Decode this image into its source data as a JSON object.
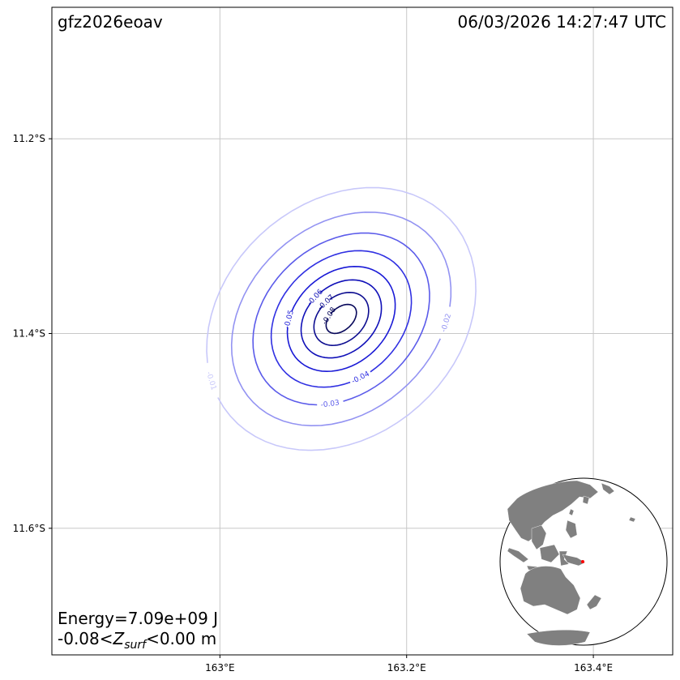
{
  "header": {
    "event_id": "gfz2026eoav",
    "timestamp": "06/03/2026 14:27:47 UTC"
  },
  "footer": {
    "energy": "Energy=7.09e+09 J",
    "zsurf_prefix": "-0.08<",
    "zsurf_symbol": "Z",
    "zsurf_subscript": "surf",
    "zsurf_suffix": "<0.00 m"
  },
  "map": {
    "lon_range": [
      162.82,
      163.485
    ],
    "lat_range": [
      -11.73,
      -11.065
    ],
    "lon_ticks": [
      {
        "value": 163.0,
        "label": "163°E"
      },
      {
        "value": 163.2,
        "label": "163.2°E"
      },
      {
        "value": 163.4,
        "label": "163.4°E"
      }
    ],
    "lat_ticks": [
      {
        "value": -11.2,
        "label": "11.2°S"
      },
      {
        "value": -11.4,
        "label": "11.4°S"
      },
      {
        "value": -11.6,
        "label": "11.6°S"
      }
    ],
    "grid": true,
    "epicenter": {
      "lon": 163.13,
      "lat": -11.385
    }
  },
  "chart_data": {
    "type": "contour",
    "title": "",
    "units": "m",
    "variable": "Z_surf",
    "x_axis": "longitude",
    "y_axis": "latitude",
    "levels": [
      {
        "value": -0.01,
        "label": "-0.01",
        "color": "#c8c8fa",
        "dlon": 0.158,
        "dlat": 0.125,
        "label_shown": true
      },
      {
        "value": -0.02,
        "label": "-0.02",
        "color": "#9393f2",
        "dlon": 0.13,
        "dlat": 0.1,
        "label_shown": true
      },
      {
        "value": -0.03,
        "label": "-0.03",
        "color": "#5b5bea",
        "dlon": 0.105,
        "dlat": 0.08,
        "label_shown": true
      },
      {
        "value": -0.04,
        "label": "-0.04",
        "color": "#3030e2",
        "dlon": 0.083,
        "dlat": 0.064,
        "label_shown": true
      },
      {
        "value": -0.05,
        "label": "-0.05",
        "color": "#1a1ad6",
        "dlon": 0.064,
        "dlat": 0.049,
        "label_shown": true
      },
      {
        "value": -0.06,
        "label": "-0.06",
        "color": "#1010b8",
        "dlon": 0.048,
        "dlat": 0.036,
        "label_shown": true
      },
      {
        "value": -0.07,
        "label": "-0.07",
        "color": "#0d0d90",
        "dlon": 0.033,
        "dlat": 0.024,
        "label_shown": true
      },
      {
        "value": -0.08,
        "label": "-0.08",
        "color": "#07075a",
        "dlon": 0.019,
        "dlat": 0.012,
        "label_shown": true
      }
    ],
    "min": -0.08,
    "max": 0.0
  },
  "inset": {
    "type": "globe",
    "ocean_color": "#ffffff",
    "land_color": "#808080",
    "marker_color": "#ff0000"
  },
  "colors": {
    "frame": "#000000",
    "grid": "#c8c8c8",
    "land": "#808080"
  }
}
